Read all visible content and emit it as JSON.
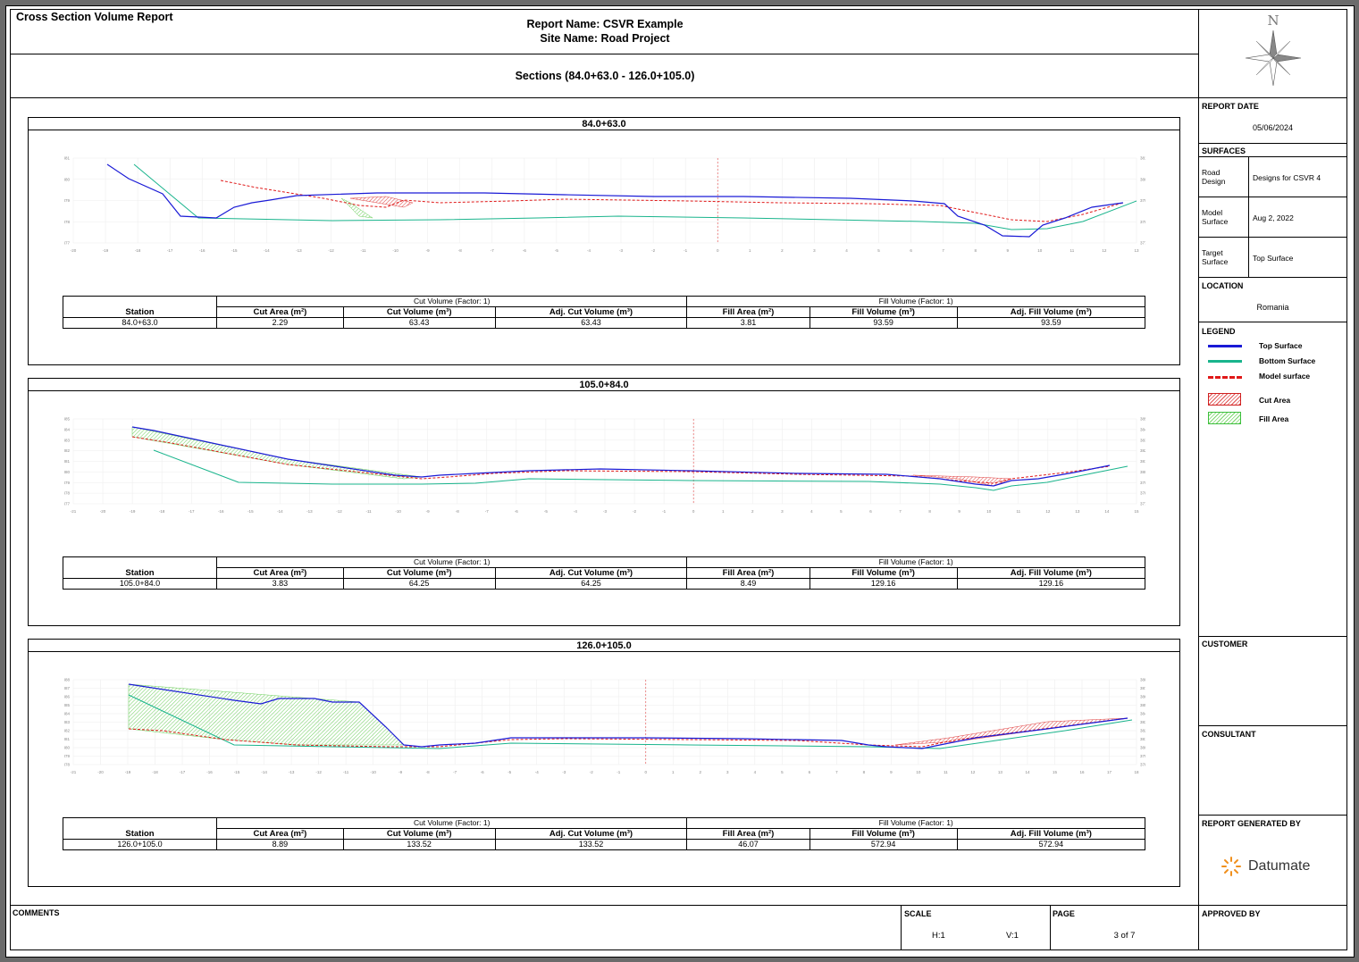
{
  "report": {
    "title": "Cross Section Volume Report",
    "report_name": "Report Name: CSVR Example",
    "site_name": "Site Name: Road Project",
    "sections_range": "Sections (84.0+63.0 - 126.0+105.0)"
  },
  "sidebar": {
    "report_date_label": "REPORT DATE",
    "report_date": "05/06/2024",
    "surfaces_label": "SURFACES",
    "surfaces": [
      {
        "type": "Road Design",
        "value": "Designs for CSVR 4"
      },
      {
        "type": "Model Surface",
        "value": "Aug 2, 2022"
      },
      {
        "type": "Target Surface",
        "value": "Top Surface"
      }
    ],
    "location_label": "LOCATION",
    "location": "Romania",
    "legend_label": "LEGEND",
    "legend": [
      {
        "name": "Top Surface",
        "color": "#1a1ad6"
      },
      {
        "name": "Bottom Surface",
        "color": "#19b48c"
      },
      {
        "name": "Model surface",
        "color": "#e01818"
      },
      {
        "name": "Cut Area",
        "color": "#e05050"
      },
      {
        "name": "Fill Area",
        "color": "#7ad66a"
      }
    ],
    "customer_label": "CUSTOMER",
    "consultant_label": "CONSULTANT",
    "generated_by_label": "REPORT GENERATED BY",
    "brand": "Datumate",
    "compass_letter": "N"
  },
  "footer": {
    "comments_label": "COMMENTS",
    "scale_label": "SCALE",
    "scale_h": "H:1",
    "scale_v": "V:1",
    "page_label": "PAGE",
    "page_value": "3 of 7",
    "approved_label": "APPROVED BY"
  },
  "table_headers": {
    "cut_group": "Cut Volume (Factor: 1)",
    "fill_group": "Fill Volume (Factor: 1)",
    "station": "Station",
    "cut_area": "Cut Area (m²)",
    "cut_volume": "Cut Volume (m³)",
    "adj_cut_volume": "Adj. Cut Volume (m³)",
    "fill_area": "Fill Area (m²)",
    "fill_volume": "Fill Volume (m³)",
    "adj_fill_volume": "Adj. Fill Volume (m³)"
  },
  "sections": [
    {
      "title": "84.0+63.0",
      "station": "84.0+63.0",
      "cut_area": "2.29",
      "cut_volume": "63.43",
      "adj_cut_volume": "63.43",
      "fill_area": "3.81",
      "fill_volume": "93.59",
      "adj_fill_volume": "93.59",
      "x_ticks": [
        "-20",
        "-19",
        "-18",
        "-17",
        "-16",
        "-15",
        "-14",
        "-13",
        "-12",
        "-11",
        "-10",
        "-9",
        "-8",
        "-7",
        "-6",
        "-5",
        "-4",
        "-3",
        "-2",
        "-1",
        "0",
        "1",
        "2",
        "3",
        "4",
        "5",
        "6",
        "7",
        "8",
        "9",
        "10",
        "11",
        "12",
        "13"
      ],
      "y_ticks": [
        "381",
        "380",
        "379",
        "378",
        "377"
      ]
    },
    {
      "title": "105.0+84.0",
      "station": "105.0+84.0",
      "cut_area": "3.83",
      "cut_volume": "64.25",
      "adj_cut_volume": "64.25",
      "fill_area": "8.49",
      "fill_volume": "129.16",
      "adj_fill_volume": "129.16",
      "x_ticks": [
        "-21",
        "-20",
        "-19",
        "-18",
        "-17",
        "-16",
        "-15",
        "-14",
        "-13",
        "-12",
        "-11",
        "-10",
        "-9",
        "-8",
        "-7",
        "-6",
        "-5",
        "-4",
        "-3",
        "-2",
        "-1",
        "0",
        "1",
        "2",
        "3",
        "4",
        "5",
        "6",
        "7",
        "8",
        "9",
        "10",
        "11",
        "12",
        "13",
        "14",
        "15"
      ],
      "y_ticks": [
        "385",
        "384",
        "383",
        "382",
        "381",
        "380",
        "379",
        "378",
        "377"
      ]
    },
    {
      "title": "126.0+105.0",
      "station": "126.0+105.0",
      "cut_area": "8.89",
      "cut_volume": "133.52",
      "adj_cut_volume": "133.52",
      "fill_area": "46.07",
      "fill_volume": "572.94",
      "adj_fill_volume": "572.94",
      "x_ticks": [
        "-21",
        "-20",
        "-19",
        "-18",
        "-17",
        "-16",
        "-15",
        "-14",
        "-13",
        "-12",
        "-11",
        "-10",
        "-9",
        "-8",
        "-7",
        "-6",
        "-5",
        "-4",
        "-3",
        "-2",
        "-1",
        "0",
        "1",
        "2",
        "3",
        "4",
        "5",
        "6",
        "7",
        "8",
        "9",
        "10",
        "11",
        "12",
        "13",
        "14",
        "15",
        "16",
        "17",
        "18"
      ],
      "y_ticks": [
        "388",
        "387",
        "386",
        "385",
        "384",
        "383",
        "382",
        "381",
        "380",
        "379",
        "378"
      ]
    }
  ]
}
